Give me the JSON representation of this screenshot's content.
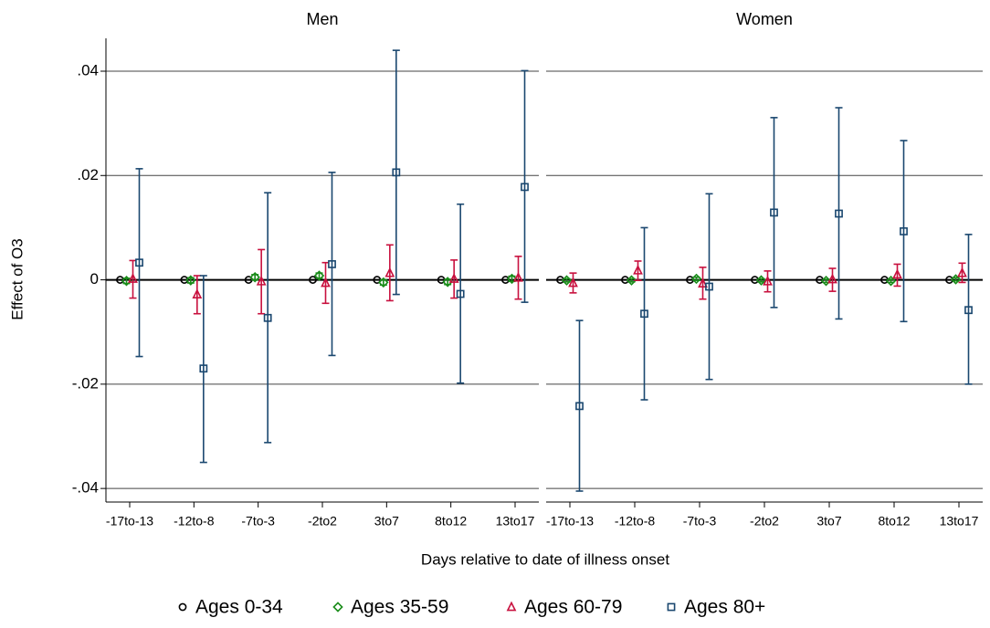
{
  "chart_data": {
    "type": "errorbar",
    "ylabel": "Effect of O3",
    "xlabel": "Days relative to date of illness onset",
    "ylim": [
      -0.0426,
      0.0463
    ],
    "yticks": [
      {
        "value": -0.04,
        "label": "-.04"
      },
      {
        "value": -0.02,
        "label": "-.02"
      },
      0,
      {
        "value": 0.02,
        "label": ".02"
      },
      {
        "value": 0.04,
        "label": ".04"
      }
    ],
    "grid": true,
    "legend": "bottom",
    "categories": [
      "-17to-13",
      "-12to-8",
      "-7to-3",
      "-2to2",
      "3to7",
      "8to12",
      "13to17"
    ],
    "series": [
      {
        "name": "Ages 0-34",
        "color": "#000000",
        "marker": "circle"
      },
      {
        "name": "Ages 35-59",
        "color": "#1a8c1a",
        "marker": "diamond"
      },
      {
        "name": "Ages 60-79",
        "color": "#c8103e",
        "marker": "triangle"
      },
      {
        "name": "Ages 80+",
        "color": "#1a476f",
        "marker": "square"
      }
    ],
    "panels": [
      {
        "title": "Men",
        "values": [
          [
            0,
            0,
            0,
            0,
            0,
            0,
            0
          ],
          [
            -0.0002,
            -0.0001,
            0.0005,
            0.0008,
            -0.0005,
            -0.0004,
            0.0002
          ],
          [
            0.0002,
            -0.0028,
            -0.0003,
            -0.0006,
            0.0013,
            0.0002,
            0.0004
          ],
          [
            0.0033,
            -0.017,
            -0.0073,
            0.003,
            0.0206,
            -0.0027,
            0.0178
          ]
        ],
        "ci_low": [
          [
            0,
            0,
            0,
            0,
            0,
            0,
            0
          ],
          [
            -0.0007,
            -0.0006,
            0,
            0.0003,
            -0.001,
            -0.0009,
            -0.0003
          ],
          [
            -0.0035,
            -0.0065,
            -0.0065,
            -0.0045,
            -0.004,
            -0.0035,
            -0.0037
          ],
          [
            -0.0147,
            -0.035,
            -0.0312,
            -0.0145,
            -0.0028,
            -0.0198,
            -0.0043
          ]
        ],
        "ci_high": [
          [
            0,
            0,
            0,
            0,
            0,
            0,
            0
          ],
          [
            0.0003,
            0.0004,
            0.001,
            0.0013,
            0,
            0.0001,
            0.0007
          ],
          [
            0.0037,
            0.0008,
            0.0058,
            0.0033,
            0.0067,
            0.0038,
            0.0045
          ],
          [
            0.0213,
            0.0008,
            0.0167,
            0.0206,
            0.044,
            0.0145,
            0.0401
          ]
        ]
      },
      {
        "title": "Women",
        "values": [
          [
            0,
            0,
            0,
            0,
            0,
            0,
            0
          ],
          [
            -0.0001,
            -0.0001,
            0.0002,
            -0.0001,
            -0.0002,
            -0.0002,
            0.0001
          ],
          [
            -0.0006,
            0.0018,
            -0.0007,
            -0.0003,
            0.0001,
            0.001,
            0.0013
          ],
          [
            -0.0242,
            -0.0065,
            -0.0013,
            0.0129,
            0.0127,
            0.0093,
            -0.0058
          ]
        ],
        "ci_low": [
          [
            0,
            0,
            0,
            0,
            0,
            0,
            0
          ],
          [
            -0.0004,
            -0.0004,
            -0.0001,
            -0.0004,
            -0.0005,
            -0.0005,
            -0.0002
          ],
          [
            -0.0025,
            -0.0001,
            -0.0037,
            -0.0023,
            -0.0022,
            -0.0012,
            -0.0005
          ],
          [
            -0.0405,
            -0.023,
            -0.0191,
            -0.0053,
            -0.0075,
            -0.008,
            -0.02
          ]
        ],
        "ci_high": [
          [
            0,
            0,
            0,
            0,
            0,
            0,
            0
          ],
          [
            0.0002,
            0.0002,
            0.0005,
            0.0002,
            0.0001,
            0.0001,
            0.0004
          ],
          [
            0.0013,
            0.0036,
            0.0024,
            0.0017,
            0.0022,
            0.003,
            0.0032
          ],
          [
            -0.0078,
            0.01,
            0.0165,
            0.0311,
            0.033,
            0.0267,
            0.0087
          ]
        ]
      }
    ]
  }
}
